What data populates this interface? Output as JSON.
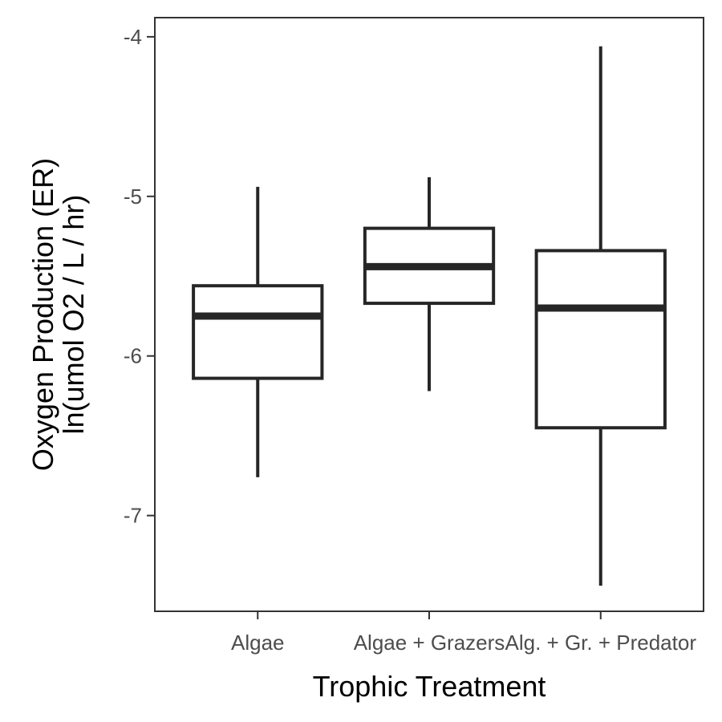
{
  "chart_data": {
    "type": "box",
    "xlabel": "Trophic Treatment",
    "ylabel_lines": [
      "Oxygen Production (ER)",
      "ln(umol O2 / L / hr)"
    ],
    "categories": [
      "Algae",
      "Algae + Grazers",
      "Alg. + Gr. + Predator"
    ],
    "boxes": [
      {
        "category": "Algae",
        "whisker_low": -6.76,
        "q1": -6.14,
        "median": -5.75,
        "q3": -5.56,
        "whisker_high": -4.94
      },
      {
        "category": "Algae + Grazers",
        "whisker_low": -6.22,
        "q1": -5.67,
        "median": -5.44,
        "q3": -5.2,
        "whisker_high": -4.88
      },
      {
        "category": "Alg. + Gr. + Predator",
        "whisker_low": -7.44,
        "q1": -6.45,
        "median": -5.7,
        "q3": -5.34,
        "whisker_high": -4.06
      }
    ],
    "yticks": [
      -7,
      -6,
      -5,
      -4
    ],
    "ytick_labels": [
      "-7",
      "-6",
      "-5",
      "-4"
    ],
    "ylim": [
      -7.6,
      -3.88
    ],
    "grid": false,
    "legend": "none",
    "colors": {
      "stroke": "#262626",
      "panel_border": "#333333",
      "tick_text": "#4d4d4d",
      "title_text": "#000000"
    }
  }
}
